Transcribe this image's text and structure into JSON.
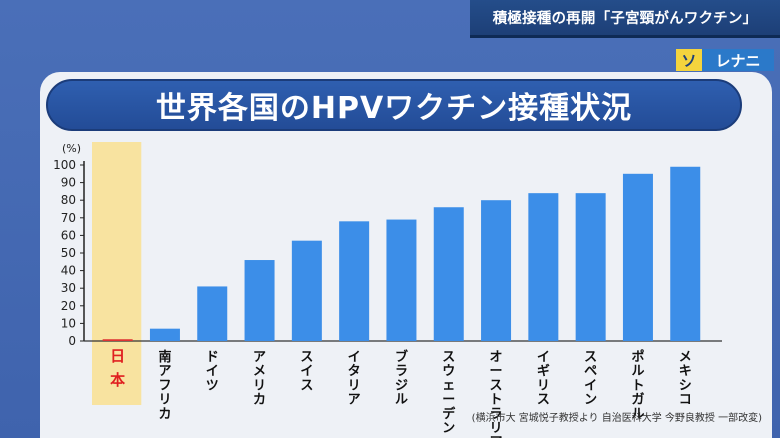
{
  "topic_banner": "積極接種の再開「子宮頸がんワクチン」",
  "badge": {
    "part1": "ソ",
    "part2": "レナニ"
  },
  "chart_title": "世界各国のHPVワクチン接種状況",
  "source_note": "(横浜市大 宮城悦子教授より 自治医科大学 今野良教授 一部改変)",
  "colors": {
    "bar": "#3c8ee8",
    "highlight": "#f8e3a0",
    "highlight_text": "#e02020"
  },
  "chart_data": {
    "type": "bar",
    "title": "世界各国のHPVワクチン接種状況",
    "ylabel": "(%)",
    "ylim": [
      0,
      100
    ],
    "yticks": [
      0,
      10,
      20,
      30,
      40,
      50,
      60,
      70,
      80,
      90,
      100
    ],
    "grid": false,
    "highlighted_category": "日本",
    "categories": [
      "日本",
      "南アフリカ",
      "ドイツ",
      "アメリカ",
      "スイス",
      "イタリア",
      "ブラジル",
      "スウェーデン",
      "オーストラリア",
      "イギリス",
      "スペイン",
      "ポルトガル",
      "メキシコ"
    ],
    "values": [
      1,
      7,
      31,
      46,
      57,
      68,
      69,
      76,
      80,
      84,
      84,
      95,
      99
    ]
  }
}
